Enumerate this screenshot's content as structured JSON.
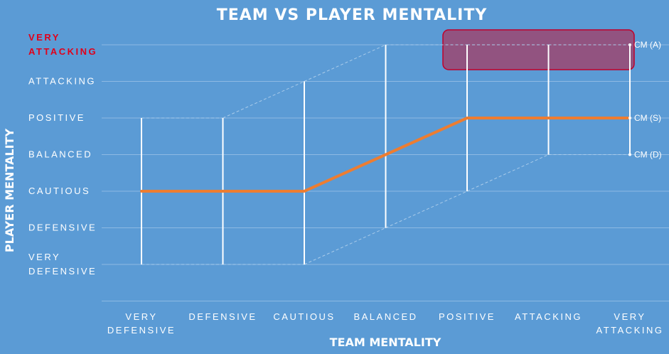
{
  "chart_data": {
    "type": "line",
    "title": "TEAM VS PLAYER MENTALITY",
    "xlabel": "TEAM MENTALITY",
    "ylabel": "PLAYER MENTALITY",
    "categories": [
      [
        "VERY",
        "DEFENSIVE"
      ],
      [
        "DEFENSIVE"
      ],
      [
        "CAUTIOUS"
      ],
      [
        "BALANCED"
      ],
      [
        "POSITIVE"
      ],
      [
        "ATTACKING"
      ],
      [
        "VERY",
        "ATTACKING"
      ]
    ],
    "y_levels": [
      {
        "lines": [
          "VERY",
          "DEFENSIVE"
        ],
        "highlight": false
      },
      {
        "lines": [
          "DEFENSIVE"
        ],
        "highlight": false
      },
      {
        "lines": [
          "CAUTIOUS"
        ],
        "highlight": false
      },
      {
        "lines": [
          "BALANCED"
        ],
        "highlight": false
      },
      {
        "lines": [
          "POSITIVE"
        ],
        "highlight": false
      },
      {
        "lines": [
          "ATTACKING"
        ],
        "highlight": false
      },
      {
        "lines": [
          "VERY",
          "ATTACKING"
        ],
        "highlight": true
      }
    ],
    "ylim": [
      0,
      6
    ],
    "grid": true,
    "series": [
      {
        "name": "CM (A)",
        "values": [
          4,
          4,
          5,
          6,
          6,
          6,
          6
        ]
      },
      {
        "name": "CM (S)",
        "values": [
          2,
          2,
          2,
          3,
          4,
          4,
          4
        ]
      },
      {
        "name": "CM (D)",
        "values": [
          0,
          0,
          0,
          1,
          2,
          3,
          3
        ]
      }
    ],
    "highlight_region": {
      "x_from": 4,
      "x_to": 6,
      "y_from": 5.5,
      "y_to": 6
    },
    "colors": {
      "background": "#5B9BD5",
      "main_line": "#ED7D31",
      "range_lines": "#FFFFFF",
      "grid": "#8DBAE3",
      "dashed": "#A9CBEA",
      "highlight_fill": "#A0416A",
      "highlight_stroke": "#C0002A",
      "highlight_text": "#E0001A"
    }
  }
}
